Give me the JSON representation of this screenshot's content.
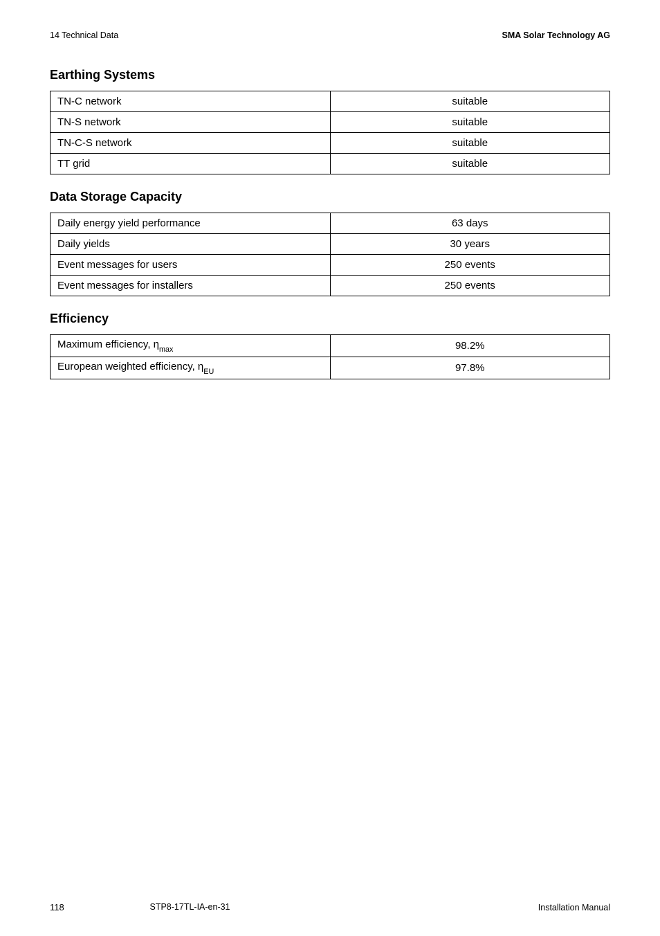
{
  "header": {
    "left": "14  Technical Data",
    "right": "SMA Solar Technology AG"
  },
  "sections": {
    "earthing": {
      "heading": "Earthing Systems",
      "rows": [
        {
          "label": "TN-C network",
          "value": "suitable"
        },
        {
          "label": "TN-S network",
          "value": "suitable"
        },
        {
          "label": "TN-C-S network",
          "value": "suitable"
        },
        {
          "label": "TT grid",
          "value": "suitable"
        }
      ]
    },
    "storage": {
      "heading": "Data Storage Capacity",
      "rows": [
        {
          "label": "Daily energy yield performance",
          "value": "63 days"
        },
        {
          "label": "Daily yields",
          "value": "30 years"
        },
        {
          "label": "Event messages for users",
          "value": "250 events"
        },
        {
          "label": "Event messages for installers",
          "value": "250 events"
        }
      ]
    },
    "efficiency": {
      "heading": "Efficiency",
      "rows": [
        {
          "label_prefix": "Maximum efficiency, η",
          "label_sub": "max",
          "value": "98.2%"
        },
        {
          "label_prefix": "European weighted efficiency, η",
          "label_sub": "EU",
          "value": "97.8%"
        }
      ]
    }
  },
  "footer": {
    "page": "118",
    "doc": "STP8-17TL-IA-en-31",
    "right": "Installation Manual"
  }
}
